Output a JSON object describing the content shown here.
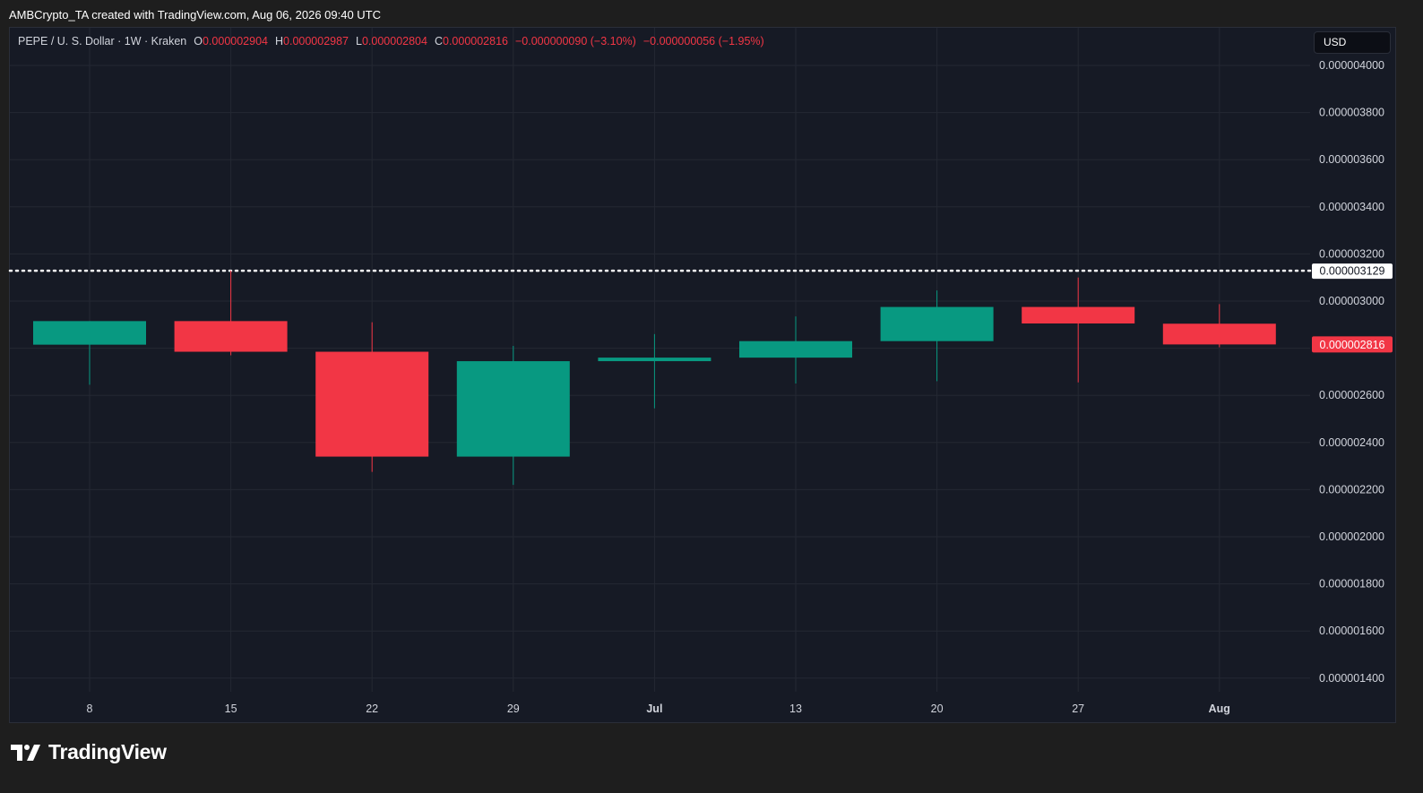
{
  "caption": "AMBCrypto_TA created with TradingView.com, Aug 06, 2026 09:40 UTC",
  "legend": {
    "symbol": "PEPE / U. S. Dollar · 1W · Kraken",
    "open_label": "O",
    "open": "0.000002904",
    "high_label": "H",
    "high": "0.000002987",
    "low_label": "L",
    "low": "0.000002804",
    "close_label": "C",
    "close": "0.000002816",
    "change": "−0.000000090 (−3.10%)",
    "change2": "−0.000000056 (−1.95%)"
  },
  "currency_button": "USD",
  "brand": {
    "name": "TradingView",
    "icon": "tradingview-logo-icon"
  },
  "colors": {
    "up": "#089981",
    "down": "#f23645",
    "background": "#161a25",
    "grid": "#242833",
    "text": "#d1d4dc"
  },
  "chart_data": {
    "type": "candlestick",
    "x_tick_labels": [
      "8",
      "15",
      "22",
      "29",
      "Jul",
      "13",
      "20",
      "27",
      "Aug"
    ],
    "y_tick_labels": [
      "0.000004000",
      "0.000003800",
      "0.000003600",
      "0.000003400",
      "0.000003200",
      "0.000003000",
      "0.000002800",
      "0.000002600",
      "0.000002400",
      "0.000002200",
      "0.000002000",
      "0.000001800",
      "0.000001600",
      "0.000001400"
    ],
    "ylim": [
      1.3e-06,
      4e-06
    ],
    "price_line": {
      "value": 3.129e-06,
      "label": "0.000003129",
      "style": "dotted"
    },
    "current_price": {
      "value": 2.816e-06,
      "label": "0.000002816"
    },
    "candles": [
      {
        "x": "8",
        "open": 2.815e-06,
        "high": 2.915e-06,
        "low": 2.645e-06,
        "close": 2.915e-06
      },
      {
        "x": "15",
        "open": 2.915e-06,
        "high": 3.13e-06,
        "low": 2.77e-06,
        "close": 2.785e-06
      },
      {
        "x": "22",
        "open": 2.785e-06,
        "high": 2.91e-06,
        "low": 2.275e-06,
        "close": 2.34e-06
      },
      {
        "x": "29",
        "open": 2.34e-06,
        "high": 2.81e-06,
        "low": 2.22e-06,
        "close": 2.745e-06
      },
      {
        "x": "Jul",
        "open": 2.745e-06,
        "high": 2.86e-06,
        "low": 2.545e-06,
        "close": 2.76e-06
      },
      {
        "x": "13",
        "open": 2.76e-06,
        "high": 2.935e-06,
        "low": 2.65e-06,
        "close": 2.83e-06
      },
      {
        "x": "20",
        "open": 2.83e-06,
        "high": 3.045e-06,
        "low": 2.66e-06,
        "close": 2.975e-06
      },
      {
        "x": "27",
        "open": 2.975e-06,
        "high": 3.1e-06,
        "low": 2.655e-06,
        "close": 2.905e-06
      },
      {
        "x": "Aug",
        "open": 2.904e-06,
        "high": 2.987e-06,
        "low": 2.804e-06,
        "close": 2.816e-06
      }
    ]
  }
}
